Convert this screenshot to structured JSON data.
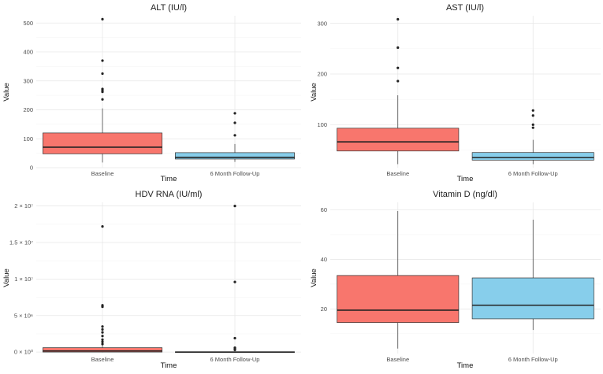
{
  "chart_data": [
    {
      "type": "box",
      "title": "ALT (IU/l)",
      "xlabel": "Time",
      "ylabel": "Value",
      "categories": [
        "Baseline",
        "6 Month Follow-Up"
      ],
      "ylim": [
        0,
        525
      ],
      "yticks": [
        0,
        100,
        200,
        300,
        400,
        500
      ],
      "ytick_labels": [
        "0",
        "100",
        "200",
        "300",
        "400",
        "500"
      ],
      "boxes": [
        {
          "category": "Baseline",
          "whisker_low": 18,
          "q1": 48,
          "median": 71,
          "q3": 120,
          "whisker_high": 205,
          "outliers": [
            236,
            262,
            268,
            272,
            325,
            370,
            513
          ],
          "color": "#f8766d"
        },
        {
          "category": "6 Month Follow-Up",
          "whisker_low": 20,
          "q1": 30,
          "median": 36,
          "q3": 52,
          "whisker_high": 82,
          "outliers": [
            112,
            155,
            188
          ],
          "color": "#87ceeb"
        }
      ]
    },
    {
      "type": "box",
      "title": "AST (IU/l)",
      "xlabel": "Time",
      "ylabel": "Value",
      "categories": [
        "Baseline",
        "6 Month Follow-Up"
      ],
      "ylim": [
        15,
        315
      ],
      "yticks": [
        100,
        200,
        300
      ],
      "ytick_labels": [
        "100",
        "200",
        "300"
      ],
      "boxes": [
        {
          "category": "Baseline",
          "whisker_low": 22,
          "q1": 48,
          "median": 66,
          "q3": 93,
          "whisker_high": 158,
          "outliers": [
            186,
            212,
            252,
            308
          ],
          "color": "#f8766d"
        },
        {
          "category": "6 Month Follow-Up",
          "whisker_low": 22,
          "q1": 30,
          "median": 35,
          "q3": 45,
          "whisker_high": 70,
          "outliers": [
            94,
            100,
            118,
            128
          ],
          "color": "#87ceeb"
        }
      ]
    },
    {
      "type": "box",
      "title": "HDV RNA (IU/ml)",
      "xlabel": "Time",
      "ylabel": "Value",
      "categories": [
        "Baseline",
        "6 Month Follow-Up"
      ],
      "ylim": [
        -200000,
        20500000
      ],
      "yticks": [
        0,
        5000000,
        10000000,
        15000000,
        20000000
      ],
      "ytick_labels": [
        "0 × 10⁰",
        "5 × 10⁶",
        "1 × 10⁷",
        "1.5 × 10⁷",
        "2 × 10⁷"
      ],
      "boxes": [
        {
          "category": "Baseline",
          "whisker_low": 0,
          "q1": 0,
          "median": 150000,
          "q3": 600000,
          "whisker_high": 1000000,
          "outliers": [
            1100000,
            1400000,
            1700000,
            2200000,
            2700000,
            3100000,
            3500000,
            6200000,
            6400000,
            17200000
          ],
          "color": "#f8766d"
        },
        {
          "category": "6 Month Follow-Up",
          "whisker_low": 0,
          "q1": 0,
          "median": 0,
          "q3": 40000,
          "whisker_high": 90000,
          "outliers": [
            300000,
            450000,
            600000,
            1900000,
            9600000,
            20000000
          ],
          "color": "#87ceeb"
        }
      ]
    },
    {
      "type": "box",
      "title": "Vitamin D (ng/dl)",
      "xlabel": "Time",
      "ylabel": "Value",
      "categories": [
        "Baseline",
        "6 Month Follow-Up"
      ],
      "ylim": [
        2,
        63
      ],
      "yticks": [
        20,
        40,
        60
      ],
      "ytick_labels": [
        "20",
        "40",
        "60"
      ],
      "boxes": [
        {
          "category": "Baseline",
          "whisker_low": 4,
          "q1": 14.5,
          "median": 19.5,
          "q3": 33.5,
          "whisker_high": 59.5,
          "outliers": [],
          "color": "#f8766d"
        },
        {
          "category": "6 Month Follow-Up",
          "whisker_low": 11.5,
          "q1": 16,
          "median": 21.5,
          "q3": 32.5,
          "whisker_high": 56,
          "outliers": [],
          "color": "#87ceeb"
        }
      ]
    }
  ]
}
